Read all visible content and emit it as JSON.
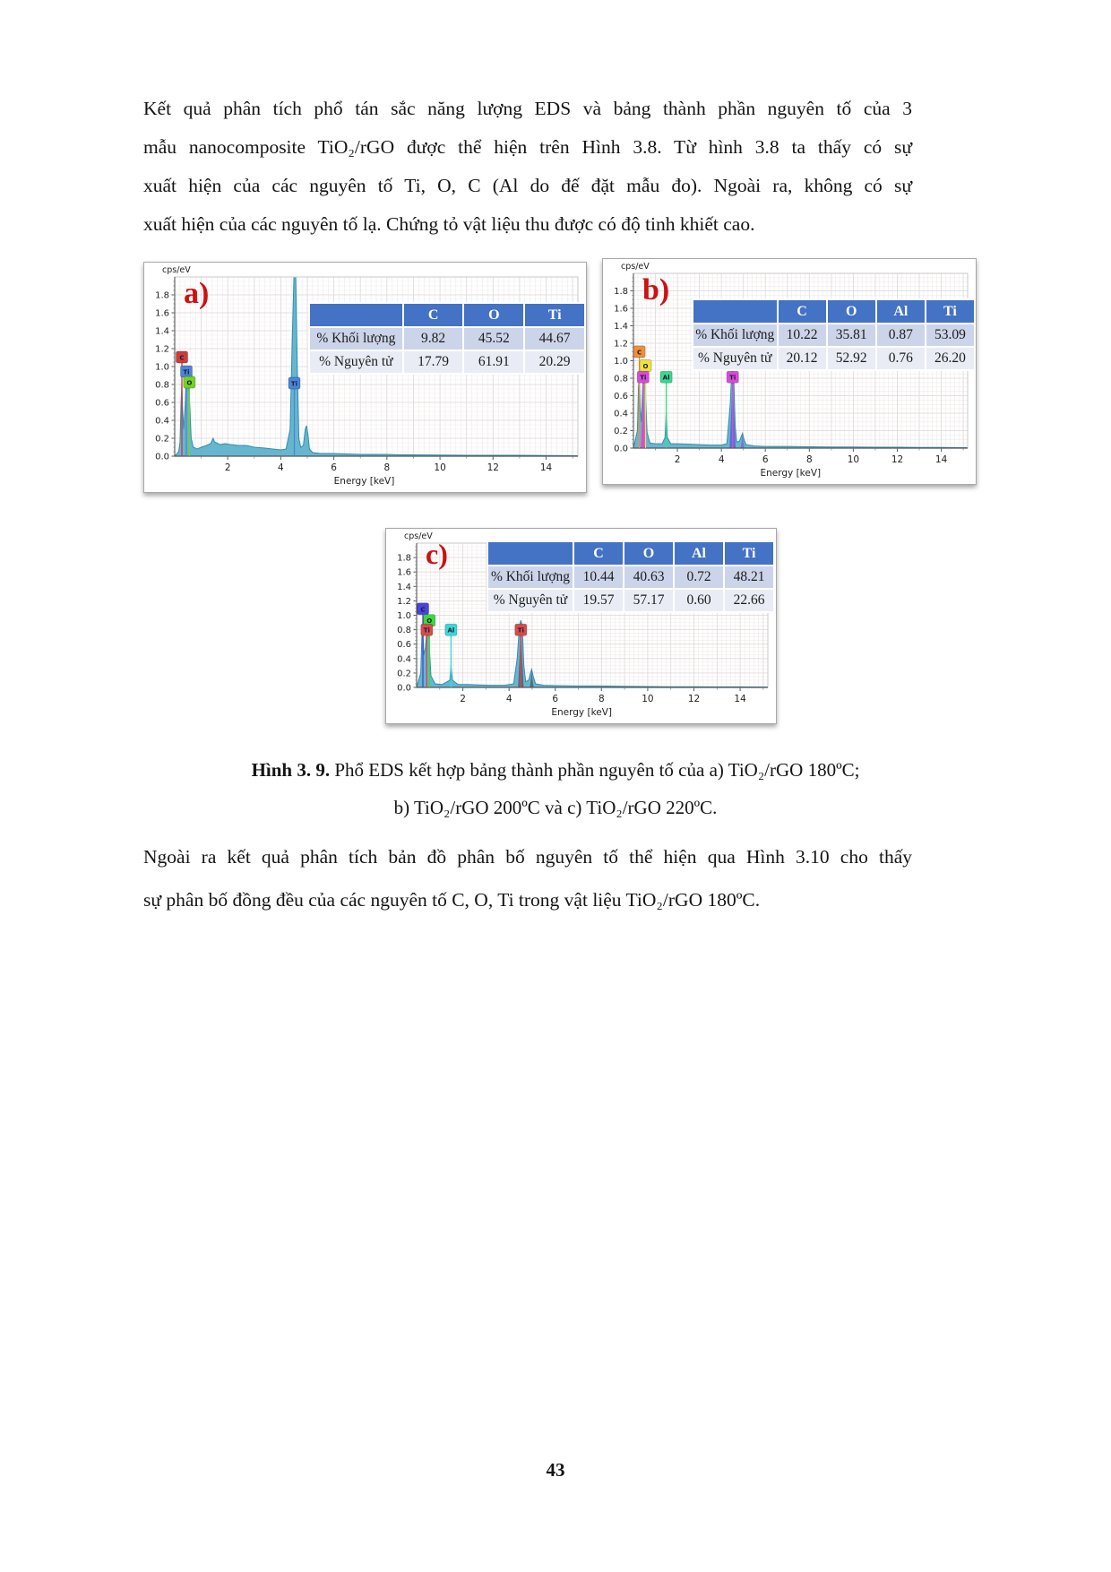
{
  "page": {
    "paragraph_top": {
      "lines": [
        "Kết quả phân tích phổ tán sắc năng lượng EDS và bảng thành phần nguyên tố của 3",
        "mẫu nanocomposite TiO₂/rGO được thể hiện trên Hình 3.8. Từ hình 3.8 ta thấy có sự",
        "xuất hiện của các nguyên tố Ti, O, C (Al do đế đặt mẫu đo). Ngoài ra, không có sự",
        "xuất hiện của các nguyên tố lạ. Chứng tỏ vật liệu thu được có độ tinh khiết cao."
      ]
    },
    "caption": {
      "label": "Hình 3. 9.",
      "line1_rest": " Phổ EDS kết hợp bảng thành phần nguyên tố của a) TiO₂/rGO 180ºC;",
      "line2": "b) TiO₂/rGO 200ºC và c) TiO₂/rGO 220ºC."
    },
    "paragraph_bottom": {
      "lines": [
        "Ngoài ra kết quả phân tích bản đồ phân bố nguyên tố thể hiện qua Hình 3.10 cho thấy",
        "sự phân bố đồng đều của các nguyên tố C, O, Ti trong vật liệu TiO₂/rGO 180ºC."
      ]
    },
    "page_number": "43"
  },
  "chart_data": [
    {
      "id": "a",
      "type": "area",
      "panel_label": "a)",
      "y_unit_label": "cps/eV",
      "xlabel": "Energy [keV]",
      "xlim": [
        0,
        15.2
      ],
      "ylim": [
        0,
        2.0
      ],
      "x_ticks": [
        2,
        4,
        6,
        8,
        10,
        12,
        14
      ],
      "y_ticks": [
        0.0,
        0.2,
        0.4,
        0.6,
        0.8,
        1.0,
        1.2,
        1.4,
        1.6,
        1.8
      ],
      "series_fill": "#57aecb",
      "series_stroke": "#2f8fae",
      "table": {
        "columns": [
          "",
          "C",
          "O",
          "Ti"
        ],
        "rows": [
          {
            "label": "% Khối lượng",
            "values": [
              "9.82",
              "45.52",
              "44.67"
            ]
          },
          {
            "label": "% Nguyên tử",
            "values": [
              "17.79",
              "61.91",
              "20.29"
            ]
          }
        ]
      },
      "continuum": [
        [
          0,
          0
        ],
        [
          0.15,
          0.05
        ],
        [
          0.2,
          0.15
        ],
        [
          0.24,
          0.6
        ],
        [
          0.27,
          0.82
        ],
        [
          0.3,
          0.5
        ],
        [
          0.34,
          0.3
        ],
        [
          0.4,
          0.6
        ],
        [
          0.44,
          0.95
        ],
        [
          0.48,
          0.9
        ],
        [
          0.52,
          0.82
        ],
        [
          0.56,
          0.6
        ],
        [
          0.62,
          0.2
        ],
        [
          0.7,
          0.1
        ],
        [
          0.85,
          0.08
        ],
        [
          1.0,
          0.1
        ],
        [
          1.2,
          0.12
        ],
        [
          1.35,
          0.14
        ],
        [
          1.45,
          0.2
        ],
        [
          1.5,
          0.16
        ],
        [
          1.7,
          0.13
        ],
        [
          1.9,
          0.14
        ],
        [
          2.1,
          0.13
        ],
        [
          2.4,
          0.12
        ],
        [
          2.7,
          0.12
        ],
        [
          3.0,
          0.1
        ],
        [
          3.4,
          0.09
        ],
        [
          3.7,
          0.08
        ],
        [
          4.0,
          0.07
        ],
        [
          4.2,
          0.08
        ],
        [
          4.35,
          0.3
        ],
        [
          4.45,
          1.5
        ],
        [
          4.5,
          2.05
        ],
        [
          4.56,
          2.05
        ],
        [
          4.62,
          1.0
        ],
        [
          4.68,
          0.2
        ],
        [
          4.75,
          0.1
        ],
        [
          4.85,
          0.12
        ],
        [
          4.92,
          0.3
        ],
        [
          4.97,
          0.34
        ],
        [
          5.02,
          0.25
        ],
        [
          5.08,
          0.08
        ],
        [
          5.2,
          0.04
        ],
        [
          5.5,
          0.03
        ],
        [
          6,
          0.03
        ],
        [
          6.5,
          0.025
        ],
        [
          7,
          0.02
        ],
        [
          7.5,
          0.02
        ],
        [
          8,
          0.02
        ],
        [
          8.5,
          0.015
        ],
        [
          9,
          0.015
        ],
        [
          10,
          0.012
        ],
        [
          11,
          0.01
        ],
        [
          12,
          0.01
        ],
        [
          13,
          0.01
        ],
        [
          14,
          0.008
        ],
        [
          15.2,
          0.005
        ]
      ],
      "overlay_peaks": [],
      "element_lines": [
        {
          "x": 0.27,
          "top": 1.1,
          "color": "#cf3b3b"
        },
        {
          "x": 0.44,
          "top": 0.95,
          "color": "#4a86d8"
        },
        {
          "x": 0.55,
          "top": 0.83,
          "color": "#72d41f"
        },
        {
          "x": 4.51,
          "top": 0.82,
          "color": "#4a86d8"
        }
      ],
      "markers": [
        {
          "x": 0.27,
          "y": 1.17,
          "label": "C",
          "color": "#cf3b3b"
        },
        {
          "x": 0.44,
          "y": 1.01,
          "label": "Ti",
          "color": "#4a86d8"
        },
        {
          "x": 0.55,
          "y": 0.89,
          "label": "O",
          "color": "#72d41f"
        },
        {
          "x": 4.51,
          "y": 0.88,
          "label": "Ti",
          "color": "#4a86d8"
        }
      ]
    },
    {
      "id": "b",
      "type": "area",
      "panel_label": "b)",
      "y_unit_label": "cps/eV",
      "xlabel": "Energy [keV]",
      "xlim": [
        0,
        15.2
      ],
      "ylim": [
        0,
        2.0
      ],
      "x_ticks": [
        2,
        4,
        6,
        8,
        10,
        12,
        14
      ],
      "y_ticks": [
        0.0,
        0.2,
        0.4,
        0.6,
        0.8,
        1.0,
        1.2,
        1.4,
        1.6,
        1.8
      ],
      "series_fill": "#57aecb",
      "series_stroke": "#2f8fae",
      "table": {
        "columns": [
          "",
          "C",
          "O",
          "Al",
          "Ti"
        ],
        "rows": [
          {
            "label": "% Khối lượng",
            "values": [
              "10.22",
              "35.81",
              "0.87",
              "53.09"
            ]
          },
          {
            "label": "% Nguyên tử",
            "values": [
              "20.12",
              "52.92",
              "0.76",
              "26.20"
            ]
          }
        ]
      },
      "continuum": [
        [
          0,
          0
        ],
        [
          0.18,
          0.2
        ],
        [
          0.23,
          0.7
        ],
        [
          0.27,
          0.8
        ],
        [
          0.31,
          0.45
        ],
        [
          0.36,
          0.3
        ],
        [
          0.42,
          0.7
        ],
        [
          0.46,
          0.82
        ],
        [
          0.52,
          0.88
        ],
        [
          0.56,
          0.55
        ],
        [
          0.62,
          0.18
        ],
        [
          0.75,
          0.06
        ],
        [
          1.0,
          0.05
        ],
        [
          1.3,
          0.05
        ],
        [
          1.44,
          0.12
        ],
        [
          1.49,
          0.42
        ],
        [
          1.54,
          0.12
        ],
        [
          1.7,
          0.05
        ],
        [
          2.0,
          0.05
        ],
        [
          2.5,
          0.045
        ],
        [
          3.0,
          0.04
        ],
        [
          3.5,
          0.035
        ],
        [
          4.0,
          0.035
        ],
        [
          4.25,
          0.05
        ],
        [
          4.4,
          0.5
        ],
        [
          4.47,
          0.85
        ],
        [
          4.51,
          0.9
        ],
        [
          4.56,
          0.82
        ],
        [
          4.63,
          0.25
        ],
        [
          4.7,
          0.07
        ],
        [
          4.82,
          0.08
        ],
        [
          4.9,
          0.13
        ],
        [
          4.96,
          0.17
        ],
        [
          5.03,
          0.1
        ],
        [
          5.12,
          0.04
        ],
        [
          5.5,
          0.025
        ],
        [
          6,
          0.02
        ],
        [
          7,
          0.02
        ],
        [
          8,
          0.015
        ],
        [
          9,
          0.012
        ],
        [
          10,
          0.012
        ],
        [
          11,
          0.01
        ],
        [
          12,
          0.01
        ],
        [
          13,
          0.008
        ],
        [
          14,
          0.008
        ],
        [
          15.2,
          0.005
        ]
      ],
      "overlay_peaks": [
        {
          "x": 0.45,
          "h": 0.78,
          "hw": 0.12,
          "color": "#d94ad9"
        },
        {
          "x": 4.51,
          "h": 0.9,
          "hw": 0.14,
          "color": "#5b68cf"
        },
        {
          "x": 4.96,
          "h": 0.16,
          "hw": 0.09,
          "color": "#7a6fd0"
        }
      ],
      "element_lines": [
        {
          "x": 0.27,
          "top": 1.1,
          "color": "#ef8f3a"
        },
        {
          "x": 0.55,
          "top": 0.95,
          "color": "#e8d93a"
        },
        {
          "x": 0.44,
          "top": 0.82,
          "color": "#d94ad9"
        },
        {
          "x": 1.49,
          "top": 0.82,
          "color": "#3ad98c"
        },
        {
          "x": 4.51,
          "top": 0.82,
          "color": "#d94ad9"
        }
      ],
      "markers": [
        {
          "x": 0.27,
          "y": 1.17,
          "label": "C",
          "color": "#ef8f3a"
        },
        {
          "x": 0.55,
          "y": 1.01,
          "label": "O",
          "color": "#f0e23a"
        },
        {
          "x": 0.44,
          "y": 0.88,
          "label": "Ti",
          "color": "#d94ad9"
        },
        {
          "x": 1.49,
          "y": 0.88,
          "label": "Al",
          "color": "#3ad98c"
        },
        {
          "x": 4.51,
          "y": 0.88,
          "label": "Ti",
          "color": "#d94ad9"
        }
      ]
    },
    {
      "id": "c",
      "type": "area",
      "panel_label": "c)",
      "y_unit_label": "cps/eV",
      "xlabel": "Energy [keV]",
      "xlim": [
        0,
        15.2
      ],
      "ylim": [
        0,
        2.0
      ],
      "x_ticks": [
        2,
        4,
        6,
        8,
        10,
        12,
        14
      ],
      "y_ticks": [
        0.0,
        0.2,
        0.4,
        0.6,
        0.8,
        1.0,
        1.2,
        1.4,
        1.6,
        1.8
      ],
      "series_fill": "#57aecb",
      "series_stroke": "#2f8fae",
      "table": {
        "columns": [
          "",
          "C",
          "O",
          "Al",
          "Ti"
        ],
        "rows": [
          {
            "label": "% Khối lượng",
            "values": [
              "10.44",
              "40.63",
              "0.72",
              "48.21"
            ]
          },
          {
            "label": "% Nguyên tử",
            "values": [
              "19.57",
              "57.17",
              "0.60",
              "22.66"
            ]
          }
        ]
      },
      "continuum": [
        [
          0,
          0
        ],
        [
          0.18,
          0.2
        ],
        [
          0.23,
          0.7
        ],
        [
          0.27,
          0.8
        ],
        [
          0.31,
          0.45
        ],
        [
          0.38,
          0.55
        ],
        [
          0.43,
          0.75
        ],
        [
          0.47,
          0.85
        ],
        [
          0.52,
          0.88
        ],
        [
          0.56,
          0.5
        ],
        [
          0.62,
          0.16
        ],
        [
          0.8,
          0.05
        ],
        [
          1.1,
          0.04
        ],
        [
          1.44,
          0.1
        ],
        [
          1.49,
          0.3
        ],
        [
          1.55,
          0.1
        ],
        [
          1.8,
          0.04
        ],
        [
          2.2,
          0.04
        ],
        [
          2.7,
          0.035
        ],
        [
          3.2,
          0.03
        ],
        [
          3.8,
          0.03
        ],
        [
          4.2,
          0.05
        ],
        [
          4.35,
          0.4
        ],
        [
          4.45,
          0.85
        ],
        [
          4.51,
          0.93
        ],
        [
          4.57,
          0.85
        ],
        [
          4.64,
          0.3
        ],
        [
          4.72,
          0.08
        ],
        [
          4.85,
          0.1
        ],
        [
          4.93,
          0.2
        ],
        [
          4.98,
          0.25
        ],
        [
          5.05,
          0.15
        ],
        [
          5.15,
          0.05
        ],
        [
          5.5,
          0.03
        ],
        [
          6,
          0.025
        ],
        [
          7,
          0.02
        ],
        [
          8,
          0.02
        ],
        [
          9,
          0.015
        ],
        [
          10,
          0.012
        ],
        [
          11,
          0.01
        ],
        [
          12,
          0.01
        ],
        [
          13,
          0.008
        ],
        [
          14,
          0.008
        ],
        [
          15.2,
          0.005
        ]
      ],
      "overlay_peaks": [
        {
          "x": 4.51,
          "h": 0.93,
          "hw": 0.12,
          "color": "#5a6176"
        },
        {
          "x": 4.98,
          "h": 0.24,
          "hw": 0.08,
          "color": "#5a6176"
        }
      ],
      "element_lines": [
        {
          "x": 0.27,
          "top": 1.1,
          "color": "#4646d9"
        },
        {
          "x": 0.55,
          "top": 0.95,
          "color": "#3ad93a"
        },
        {
          "x": 0.44,
          "top": 0.82,
          "color": "#d94a4a"
        },
        {
          "x": 1.49,
          "top": 0.82,
          "color": "#3ad9d9"
        },
        {
          "x": 4.51,
          "top": 0.82,
          "color": "#d94a4a"
        }
      ],
      "markers": [
        {
          "x": 0.27,
          "y": 1.17,
          "label": "C",
          "color": "#4646d9"
        },
        {
          "x": 0.55,
          "y": 1.01,
          "label": "O",
          "color": "#3ad93a"
        },
        {
          "x": 0.44,
          "y": 0.88,
          "label": "Ti",
          "color": "#d94a4a"
        },
        {
          "x": 1.49,
          "y": 0.88,
          "label": "Al",
          "color": "#3ad9d9"
        },
        {
          "x": 4.51,
          "y": 0.88,
          "label": "Ti",
          "color": "#d94a4a"
        }
      ]
    }
  ]
}
